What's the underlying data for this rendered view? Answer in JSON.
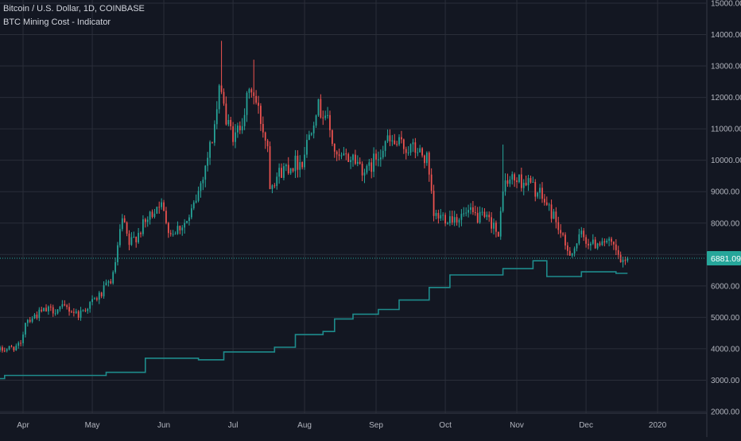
{
  "header": {
    "symbol_title": "Bitcoin / U.S. Dollar, 1D, COINBASE",
    "indicator_title": "BTC Mining Cost - Indicator"
  },
  "colors": {
    "background": "#131722",
    "grid": "#2a2e39",
    "up": "#26a69a",
    "down": "#ef5350",
    "indicator": "#1e8c8c",
    "price_line": "#26a69a",
    "axis_text": "#b2b5be"
  },
  "chart_data": {
    "type": "candlestick",
    "timeframe": "1D",
    "x_tick_labels": [
      "Apr",
      "May",
      "Jun",
      "Jul",
      "Aug",
      "Sep",
      "Oct",
      "Nov",
      "Dec",
      "2020"
    ],
    "y_tick_labels": [
      "2000.00",
      "3000.00",
      "4000.00",
      "5000.00",
      "6000.00",
      "7000.00",
      "8000.00",
      "9000.00",
      "10000.00",
      "11000.00",
      "12000.00",
      "13000.00",
      "14000.00",
      "15000.00"
    ],
    "y_ticks": [
      2000,
      3000,
      4000,
      5000,
      6000,
      7000,
      8000,
      9000,
      10000,
      11000,
      12000,
      13000,
      14000,
      15000
    ],
    "ylim": [
      1950,
      15100
    ],
    "date_range": [
      "2019-03-22",
      "2020-01-22"
    ],
    "last_price": 6881.09,
    "last_price_label": "6881.09",
    "price_anchors": [
      [
        "2019-03-22",
        3950
      ],
      [
        "2019-03-31",
        4100
      ],
      [
        "2019-04-02",
        4900
      ],
      [
        "2019-04-10",
        5200
      ],
      [
        "2019-04-20",
        5300
      ],
      [
        "2019-04-25",
        5100
      ],
      [
        "2019-05-05",
        5750
      ],
      [
        "2019-05-10",
        6300
      ],
      [
        "2019-05-14",
        8100
      ],
      [
        "2019-05-17",
        7300
      ],
      [
        "2019-05-25",
        8100
      ],
      [
        "2019-05-30",
        8700
      ],
      [
        "2019-06-04",
        7700
      ],
      [
        "2019-06-12",
        8100
      ],
      [
        "2019-06-16",
        9000
      ],
      [
        "2019-06-22",
        10700
      ],
      [
        "2019-06-26",
        12500
      ],
      [
        "2019-06-28",
        11200
      ],
      [
        "2019-07-02",
        10700
      ],
      [
        "2019-07-09",
        12300
      ],
      [
        "2019-07-16",
        10500
      ],
      [
        "2019-07-17",
        9300
      ],
      [
        "2019-07-24",
        9800
      ],
      [
        "2019-07-31",
        10000
      ],
      [
        "2019-08-06",
        11700
      ],
      [
        "2019-08-10",
        11500
      ],
      [
        "2019-08-15",
        10000
      ],
      [
        "2019-08-22",
        10100
      ],
      [
        "2019-08-28",
        9600
      ],
      [
        "2019-09-05",
        10600
      ],
      [
        "2019-09-19",
        10300
      ],
      [
        "2019-09-23",
        10000
      ],
      [
        "2019-09-26",
        8200
      ],
      [
        "2019-10-07",
        8200
      ],
      [
        "2019-10-11",
        8300
      ],
      [
        "2019-10-22",
        8000
      ],
      [
        "2019-10-24",
        7400
      ],
      [
        "2019-10-26",
        9200
      ],
      [
        "2019-10-30",
        9400
      ],
      [
        "2019-11-06",
        9300
      ],
      [
        "2019-11-12",
        8800
      ],
      [
        "2019-11-18",
        8100
      ],
      [
        "2019-11-22",
        7200
      ],
      [
        "2019-11-25",
        7100
      ],
      [
        "2019-11-29",
        7600
      ],
      [
        "2019-12-04",
        7300
      ],
      [
        "2019-12-08",
        7500
      ],
      [
        "2019-12-13",
        7200
      ],
      [
        "2019-12-16",
        6800
      ],
      [
        "2019-12-17",
        6650
      ],
      [
        "2019-12-19",
        6881
      ]
    ],
    "special_highs": [
      [
        "2019-06-26",
        13800
      ],
      [
        "2019-07-10",
        13200
      ],
      [
        "2019-10-26",
        10500
      ]
    ],
    "series": [
      {
        "name": "BTC Mining Cost",
        "style": "step-line",
        "steps": [
          [
            "2019-03-22",
            3050
          ],
          [
            "2019-03-24",
            3150
          ],
          [
            "2019-05-07",
            3250
          ],
          [
            "2019-05-24",
            3700
          ],
          [
            "2019-06-16",
            3650
          ],
          [
            "2019-06-27",
            3900
          ],
          [
            "2019-07-19",
            4050
          ],
          [
            "2019-07-28",
            4450
          ],
          [
            "2019-08-09",
            4550
          ],
          [
            "2019-08-14",
            4950
          ],
          [
            "2019-08-22",
            5100
          ],
          [
            "2019-09-02",
            5250
          ],
          [
            "2019-09-11",
            5550
          ],
          [
            "2019-09-24",
            5950
          ],
          [
            "2019-10-03",
            6350
          ],
          [
            "2019-10-26",
            6550
          ],
          [
            "2019-11-08",
            6800
          ],
          [
            "2019-11-14",
            6300
          ],
          [
            "2019-11-29",
            6450
          ],
          [
            "2019-12-14",
            6400
          ],
          [
            "2019-12-19",
            6400
          ]
        ]
      }
    ]
  }
}
